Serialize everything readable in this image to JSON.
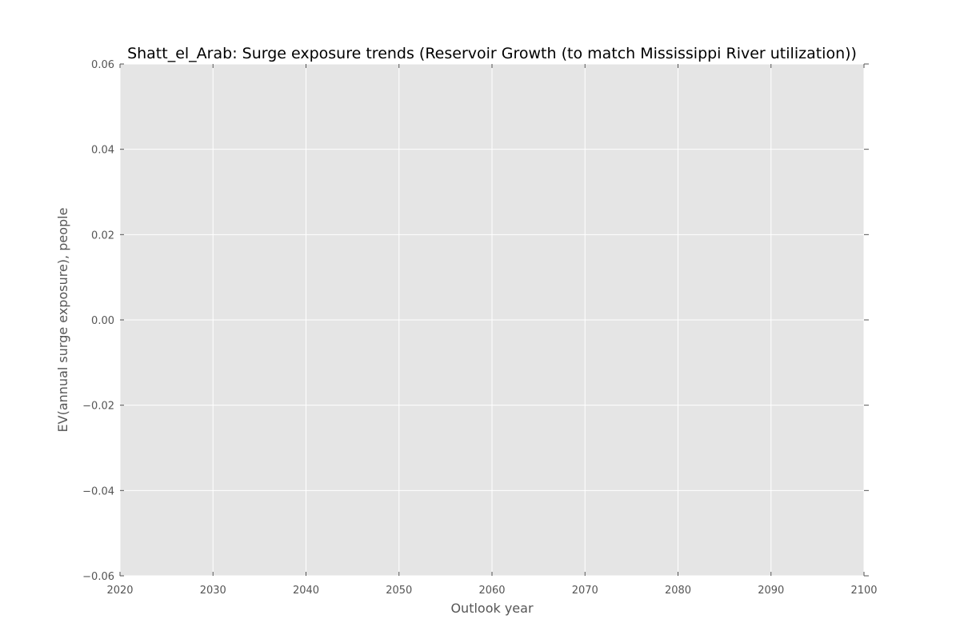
{
  "chart_data": {
    "type": "line",
    "title": "Shatt_el_Arab: Surge exposure trends (Reservoir Growth (to match Mississippi River utilization))",
    "xlabel": "Outlook year",
    "ylabel": "EV(annual surge exposure), people",
    "xlim": [
      2020,
      2100
    ],
    "ylim": [
      -0.06,
      0.06
    ],
    "x_ticks": [
      2020,
      2030,
      2040,
      2050,
      2060,
      2070,
      2080,
      2090,
      2100
    ],
    "y_ticks": [
      -0.06,
      -0.04,
      -0.02,
      0.0,
      0.02,
      0.04,
      0.06
    ],
    "x_tick_labels": [
      "2020",
      "2030",
      "2040",
      "2050",
      "2060",
      "2070",
      "2080",
      "2090",
      "2100"
    ],
    "y_tick_labels": [
      "−0.06",
      "−0.04",
      "−0.02",
      "0.00",
      "0.02",
      "0.04",
      "0.06"
    ],
    "series": [],
    "grid": true,
    "legend": "none",
    "colors": {
      "plot_background": "#e5e5e5",
      "grid": "#ffffff",
      "tick": "#555555",
      "text": "#555555",
      "title": "#000000"
    }
  }
}
